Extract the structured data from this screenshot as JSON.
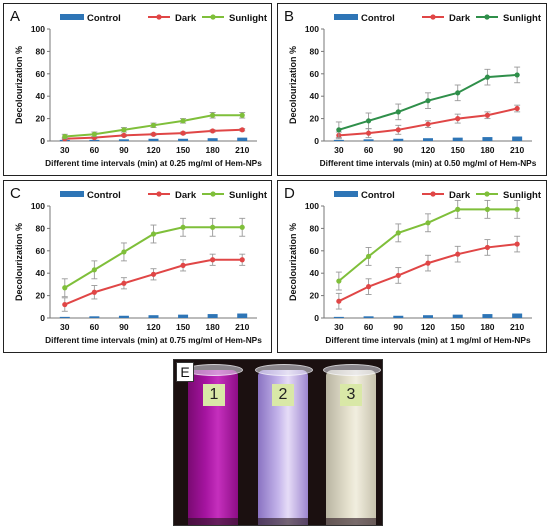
{
  "legend": {
    "control": "Control",
    "dark": "Dark",
    "sunlight": "Sunlight"
  },
  "colors": {
    "control": "#2e75b6",
    "dark": "#e04646",
    "sunlight": "#7fbf3a",
    "sunlight_b": "#2f8f4a"
  },
  "chart_data": [
    {
      "panel": "A",
      "type": "line",
      "x": [
        30,
        60,
        90,
        120,
        150,
        180,
        210
      ],
      "xlabel": "Different time intervals (min) at 0.25 mg/ml of Hem-NPs",
      "ylabel": "Decolourization %",
      "ylim": [
        0,
        100
      ],
      "yticks": [
        0,
        20,
        40,
        60,
        80,
        100
      ],
      "legend_position": "top",
      "series": [
        {
          "name": "Control",
          "kind": "bar",
          "values": [
            1,
            1,
            1.5,
            2,
            2,
            2.5,
            3
          ],
          "err": [
            0,
            0,
            0,
            0,
            0,
            0,
            0
          ]
        },
        {
          "name": "Dark",
          "kind": "line",
          "values": [
            2,
            3,
            5,
            6,
            7,
            9,
            10
          ],
          "err": [
            1,
            1,
            1,
            1,
            1,
            1,
            1
          ]
        },
        {
          "name": "Sunlight",
          "kind": "line",
          "values": [
            4,
            6,
            10,
            14,
            18,
            23,
            23
          ],
          "err": [
            2,
            2,
            2,
            2,
            2,
            2.5,
            2.5
          ]
        }
      ]
    },
    {
      "panel": "B",
      "type": "line",
      "x": [
        30,
        60,
        90,
        120,
        150,
        180,
        210
      ],
      "xlabel": "Different time intervals (min) at 0.50 mg/ml of Hem-NPs",
      "ylabel": "Decolourization %",
      "ylim": [
        0,
        100
      ],
      "yticks": [
        0,
        20,
        40,
        60,
        80,
        100
      ],
      "legend_position": "top",
      "series": [
        {
          "name": "Control",
          "kind": "bar",
          "values": [
            1,
            1.5,
            2,
            2.5,
            3,
            3.5,
            4
          ],
          "err": [
            0,
            0,
            0,
            0,
            0,
            0,
            0
          ]
        },
        {
          "name": "Dark",
          "kind": "line",
          "values": [
            5,
            7,
            10,
            15,
            20,
            23,
            29
          ],
          "err": [
            3,
            4,
            4,
            3,
            4,
            3,
            3
          ]
        },
        {
          "name": "Sunlight",
          "kind": "line",
          "values": [
            10,
            18,
            26,
            36,
            43,
            57,
            59
          ],
          "err": [
            7,
            7,
            7,
            7,
            7,
            7,
            7
          ]
        }
      ]
    },
    {
      "panel": "C",
      "type": "line",
      "x": [
        30,
        60,
        90,
        120,
        150,
        180,
        210
      ],
      "xlabel": "Different time intervals (min) at 0.75 mg/ml of Hem-NPs",
      "ylabel": "Decolourization %",
      "ylim": [
        0,
        100
      ],
      "yticks": [
        0,
        20,
        40,
        60,
        80,
        100
      ],
      "legend_position": "top",
      "series": [
        {
          "name": "Control",
          "kind": "bar",
          "values": [
            1,
            1.5,
            2,
            2.5,
            3,
            3.5,
            4
          ],
          "err": [
            0,
            0,
            0,
            0,
            0,
            0,
            0
          ]
        },
        {
          "name": "Dark",
          "kind": "line",
          "values": [
            12,
            23,
            31,
            39,
            47,
            52,
            52
          ],
          "err": [
            6,
            6,
            5,
            5,
            5,
            5,
            5
          ]
        },
        {
          "name": "Sunlight",
          "kind": "line",
          "values": [
            27,
            43,
            59,
            75,
            81,
            81,
            81
          ],
          "err": [
            8,
            8,
            8,
            8,
            8,
            8,
            8
          ]
        }
      ]
    },
    {
      "panel": "D",
      "type": "line",
      "x": [
        30,
        60,
        90,
        120,
        150,
        180,
        210
      ],
      "xlabel": "Different time intervals (min) at 1 mg/ml of Hem-NPs",
      "ylabel": "Decolourization %",
      "ylim": [
        0,
        100
      ],
      "yticks": [
        0,
        20,
        40,
        60,
        80,
        100
      ],
      "legend_position": "top",
      "series": [
        {
          "name": "Control",
          "kind": "bar",
          "values": [
            1,
            1.5,
            2,
            2.5,
            3,
            3.5,
            4
          ],
          "err": [
            0,
            0,
            0,
            0,
            0,
            0,
            0
          ]
        },
        {
          "name": "Dark",
          "kind": "line",
          "values": [
            15,
            28,
            38,
            49,
            57,
            63,
            66
          ],
          "err": [
            7,
            7,
            7,
            7,
            7,
            7,
            7
          ]
        },
        {
          "name": "Sunlight",
          "kind": "line",
          "values": [
            33,
            55,
            76,
            85,
            97,
            97,
            97
          ],
          "err": [
            8,
            8,
            8,
            8,
            8,
            8,
            8
          ]
        }
      ]
    }
  ],
  "photo": {
    "letter": "E",
    "tubes": [
      "1",
      "2",
      "3"
    ]
  }
}
